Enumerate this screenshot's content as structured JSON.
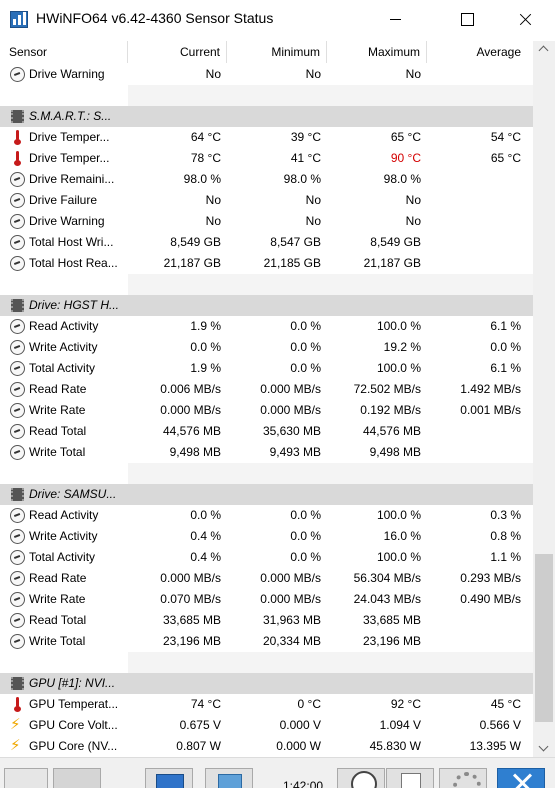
{
  "window": {
    "title": "HWiNFO64 v6.42-4360 Sensor Status"
  },
  "columns": {
    "sensor": "Sensor",
    "current": "Current",
    "minimum": "Minimum",
    "maximum": "Maximum",
    "average": "Average"
  },
  "rows": [
    {
      "type": "data",
      "icon": "clock-gauge-icon",
      "name": "Drive Warning",
      "current": "No",
      "minimum": "No",
      "maximum": "No",
      "average": ""
    },
    {
      "type": "empty"
    },
    {
      "type": "group",
      "icon": "chip-icon",
      "name": "S.M.A.R.T.: S..."
    },
    {
      "type": "data",
      "icon": "thermometer-icon",
      "name": "Drive Temper...",
      "current": "64 °C",
      "minimum": "39 °C",
      "maximum": "65 °C",
      "average": "54 °C"
    },
    {
      "type": "data",
      "icon": "thermometer-icon",
      "name": "Drive Temper...",
      "current": "78 °C",
      "minimum": "41 °C",
      "maximum": "90 °C",
      "average": "65 °C",
      "max_alarm": true
    },
    {
      "type": "data",
      "icon": "clock-gauge-icon",
      "name": "Drive Remaini...",
      "current": "98.0 %",
      "minimum": "98.0 %",
      "maximum": "98.0 %",
      "average": ""
    },
    {
      "type": "data",
      "icon": "clock-gauge-icon",
      "name": "Drive Failure",
      "current": "No",
      "minimum": "No",
      "maximum": "No",
      "average": ""
    },
    {
      "type": "data",
      "icon": "clock-gauge-icon",
      "name": "Drive Warning",
      "current": "No",
      "minimum": "No",
      "maximum": "No",
      "average": ""
    },
    {
      "type": "data",
      "icon": "clock-gauge-icon",
      "name": "Total Host Wri...",
      "current": "8,549 GB",
      "minimum": "8,547 GB",
      "maximum": "8,549 GB",
      "average": ""
    },
    {
      "type": "data",
      "icon": "clock-gauge-icon",
      "name": "Total Host Rea...",
      "current": "21,187 GB",
      "minimum": "21,185 GB",
      "maximum": "21,187 GB",
      "average": ""
    },
    {
      "type": "empty"
    },
    {
      "type": "group",
      "icon": "chip-icon",
      "name": "Drive: HGST H..."
    },
    {
      "type": "data",
      "icon": "clock-gauge-icon",
      "name": "Read Activity",
      "current": "1.9 %",
      "minimum": "0.0 %",
      "maximum": "100.0 %",
      "average": "6.1 %"
    },
    {
      "type": "data",
      "icon": "clock-gauge-icon",
      "name": "Write Activity",
      "current": "0.0 %",
      "minimum": "0.0 %",
      "maximum": "19.2 %",
      "average": "0.0 %"
    },
    {
      "type": "data",
      "icon": "clock-gauge-icon",
      "name": "Total Activity",
      "current": "1.9 %",
      "minimum": "0.0 %",
      "maximum": "100.0 %",
      "average": "6.1 %"
    },
    {
      "type": "data",
      "icon": "clock-gauge-icon",
      "name": "Read Rate",
      "current": "0.006 MB/s",
      "minimum": "0.000 MB/s",
      "maximum": "72.502 MB/s",
      "average": "1.492 MB/s"
    },
    {
      "type": "data",
      "icon": "clock-gauge-icon",
      "name": "Write Rate",
      "current": "0.000 MB/s",
      "minimum": "0.000 MB/s",
      "maximum": "0.192 MB/s",
      "average": "0.001 MB/s"
    },
    {
      "type": "data",
      "icon": "clock-gauge-icon",
      "name": "Read Total",
      "current": "44,576 MB",
      "minimum": "35,630 MB",
      "maximum": "44,576 MB",
      "average": ""
    },
    {
      "type": "data",
      "icon": "clock-gauge-icon",
      "name": "Write Total",
      "current": "9,498 MB",
      "minimum": "9,493 MB",
      "maximum": "9,498 MB",
      "average": ""
    },
    {
      "type": "empty"
    },
    {
      "type": "group",
      "icon": "chip-icon",
      "name": "Drive: SAMSU..."
    },
    {
      "type": "data",
      "icon": "clock-gauge-icon",
      "name": "Read Activity",
      "current": "0.0 %",
      "minimum": "0.0 %",
      "maximum": "100.0 %",
      "average": "0.3 %"
    },
    {
      "type": "data",
      "icon": "clock-gauge-icon",
      "name": "Write Activity",
      "current": "0.4 %",
      "minimum": "0.0 %",
      "maximum": "16.0 %",
      "average": "0.8 %"
    },
    {
      "type": "data",
      "icon": "clock-gauge-icon",
      "name": "Total Activity",
      "current": "0.4 %",
      "minimum": "0.0 %",
      "maximum": "100.0 %",
      "average": "1.1 %"
    },
    {
      "type": "data",
      "icon": "clock-gauge-icon",
      "name": "Read Rate",
      "current": "0.000 MB/s",
      "minimum": "0.000 MB/s",
      "maximum": "56.304 MB/s",
      "average": "0.293 MB/s"
    },
    {
      "type": "data",
      "icon": "clock-gauge-icon",
      "name": "Write Rate",
      "current": "0.070 MB/s",
      "minimum": "0.000 MB/s",
      "maximum": "24.043 MB/s",
      "average": "0.490 MB/s"
    },
    {
      "type": "data",
      "icon": "clock-gauge-icon",
      "name": "Read Total",
      "current": "33,685 MB",
      "minimum": "31,963 MB",
      "maximum": "33,685 MB",
      "average": ""
    },
    {
      "type": "data",
      "icon": "clock-gauge-icon",
      "name": "Write Total",
      "current": "23,196 MB",
      "minimum": "20,334 MB",
      "maximum": "23,196 MB",
      "average": ""
    },
    {
      "type": "empty"
    },
    {
      "type": "group",
      "icon": "chip-icon",
      "name": "GPU [#1]: NVI..."
    },
    {
      "type": "data",
      "icon": "thermometer-icon",
      "name": "GPU Temperat...",
      "current": "74 °C",
      "minimum": "0 °C",
      "maximum": "92 °C",
      "average": "45 °C"
    },
    {
      "type": "data",
      "icon": "lightning-icon",
      "name": "GPU Core Volt...",
      "current": "0.675 V",
      "minimum": "0.000 V",
      "maximum": "1.094 V",
      "average": "0.566 V"
    },
    {
      "type": "data",
      "icon": "lightning-icon",
      "name": "GPU Core (NV...",
      "current": "0.807 W",
      "minimum": "0.000 W",
      "maximum": "45.830 W",
      "average": "13.395 W"
    }
  ],
  "toolbar": {
    "elapsed_time": "1:42:00"
  },
  "colors": {
    "alarm": "#d40000",
    "group_background": "#d9d9d9",
    "accent": "#2f7fd0"
  }
}
